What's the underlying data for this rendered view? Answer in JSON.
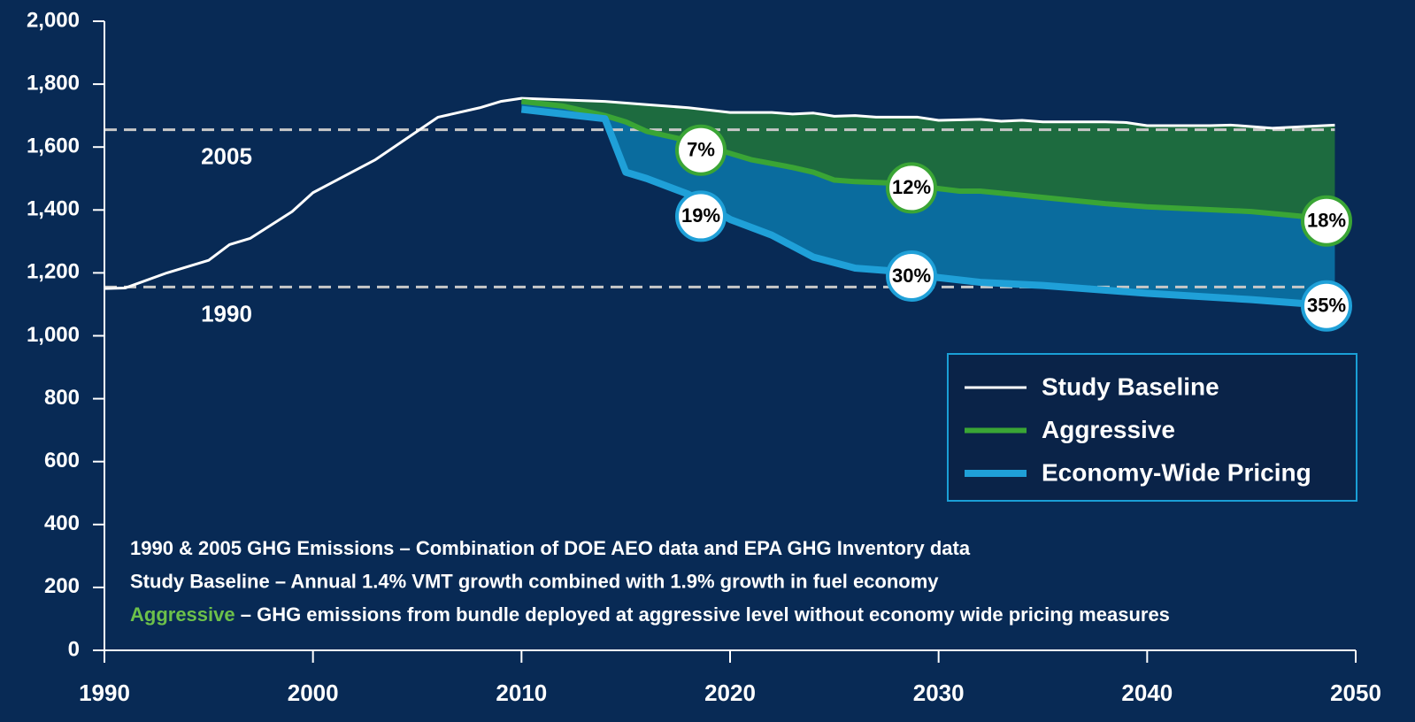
{
  "chart_data": {
    "type": "line",
    "xlim": [
      1990,
      2050
    ],
    "xticks": [
      1990,
      2000,
      2010,
      2020,
      2030,
      2040,
      2050
    ],
    "ylim": [
      0,
      2000
    ],
    "yticks": [
      0,
      200,
      400,
      600,
      800,
      {
        "value": 1000,
        "label": "1,000"
      },
      {
        "value": 1200,
        "label": "1,200"
      },
      {
        "value": 1400,
        "label": "1,400"
      },
      {
        "value": 1600,
        "label": "1,600"
      },
      {
        "value": 1800,
        "label": "1,800"
      },
      {
        "value": 2000,
        "label": "2,000"
      }
    ],
    "legend": "lower right",
    "series": [
      {
        "name": "Study Baseline",
        "color": "#ffffff",
        "x": [
          1990,
          1991,
          1993,
          1995,
          1996,
          1997,
          1999,
          2000,
          2001,
          2003,
          2005,
          2006,
          2008,
          2009,
          2010,
          2012,
          2014,
          2016,
          2018,
          2020,
          2022,
          2023,
          2024,
          2025,
          2026,
          2027,
          2029,
          2030,
          2032,
          2033,
          2034,
          2035,
          2038,
          2039,
          2040,
          2043,
          2044,
          2046,
          2049
        ],
        "values": [
          1150,
          1152,
          1200,
          1240,
          1290,
          1310,
          1395,
          1455,
          1490,
          1560,
          1650,
          1695,
          1725,
          1745,
          1755,
          1750,
          1745,
          1735,
          1725,
          1710,
          1710,
          1705,
          1708,
          1698,
          1700,
          1695,
          1695,
          1685,
          1688,
          1682,
          1685,
          1680,
          1680,
          1678,
          1668,
          1668,
          1670,
          1660,
          1670
        ]
      },
      {
        "name": "Aggressive",
        "color": "#3aa535",
        "x": [
          2010,
          2012,
          2014,
          2015,
          2016,
          2018,
          2019,
          2020,
          2021,
          2023,
          2024,
          2025,
          2026,
          2028,
          2030,
          2031,
          2032,
          2035,
          2038,
          2040,
          2045,
          2049
        ],
        "values": [
          1745,
          1730,
          1700,
          1680,
          1650,
          1620,
          1600,
          1580,
          1560,
          1535,
          1520,
          1495,
          1490,
          1485,
          1468,
          1460,
          1460,
          1440,
          1420,
          1410,
          1395,
          1370
        ]
      },
      {
        "name": "Economy-Wide Pricing",
        "color": "#1fa0d8",
        "x": [
          2010,
          2012,
          2014,
          2015,
          2016,
          2018,
          2020,
          2022,
          2024,
          2026,
          2028,
          2030,
          2032,
          2035,
          2040,
          2045,
          2049
        ],
        "values": [
          1720,
          1705,
          1690,
          1520,
          1500,
          1450,
          1370,
          1320,
          1250,
          1215,
          1205,
          1185,
          1170,
          1160,
          1135,
          1115,
          1095
        ]
      }
    ],
    "reference_lines": [
      {
        "label": "2005",
        "value": 1655
      },
      {
        "label": "1990",
        "value": 1155
      }
    ],
    "annotations": [
      {
        "text": "7%",
        "x": 2018.6,
        "y": 1590,
        "color": "#3aa535"
      },
      {
        "text": "19%",
        "x": 2018.6,
        "y": 1380,
        "color": "#1fa0d8"
      },
      {
        "text": "12%",
        "x": 2028.7,
        "y": 1470,
        "color": "#3aa535"
      },
      {
        "text": "30%",
        "x": 2028.7,
        "y": 1190,
        "color": "#1fa0d8"
      },
      {
        "text": "18%",
        "x": 2048.6,
        "y": 1365,
        "color": "#3aa535"
      },
      {
        "text": "35%",
        "x": 2048.6,
        "y": 1095,
        "color": "#1fa0d8"
      }
    ],
    "notes": [
      "1990 & 2005 GHG Emissions – Combination of DOE AEO data and EPA GHG Inventory data",
      "Study Baseline – Annual 1.4% VMT growth combined with 1.9% growth in fuel economy",
      {
        "highlight": "Aggressive",
        "text": " – GHG emissions from bundle deployed at aggressive level without economy wide pricing measures"
      }
    ]
  }
}
